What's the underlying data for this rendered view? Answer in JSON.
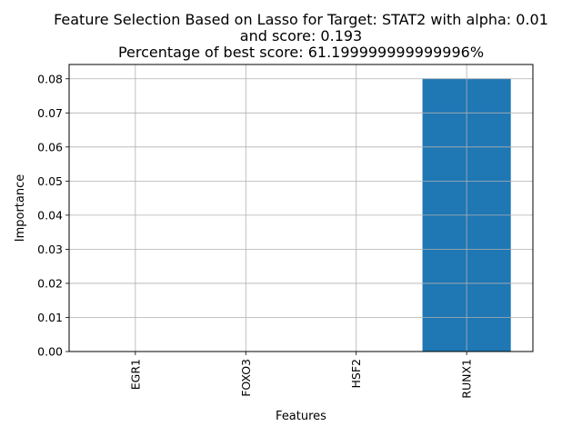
{
  "chart_data": {
    "type": "bar",
    "title_lines": [
      "Feature Selection Based on Lasso for Target: STAT2 with alpha: 0.01",
      "and score: 0.193",
      "Percentage of best score: 61.199999999999996%"
    ],
    "xlabel": "Features",
    "ylabel": "Importance",
    "categories": [
      "EGR1",
      "FOXO3",
      "HSF2",
      "RUNX1"
    ],
    "values": [
      0.0,
      0.0,
      0.0,
      0.0801
    ],
    "ylim": [
      0.0,
      0.0842
    ],
    "yticks": [
      "0.00",
      "0.01",
      "0.02",
      "0.03",
      "0.04",
      "0.05",
      "0.06",
      "0.07",
      "0.08"
    ],
    "grid": true,
    "bar_color": "#1f77b4",
    "grid_color": "#b0b0b0"
  }
}
